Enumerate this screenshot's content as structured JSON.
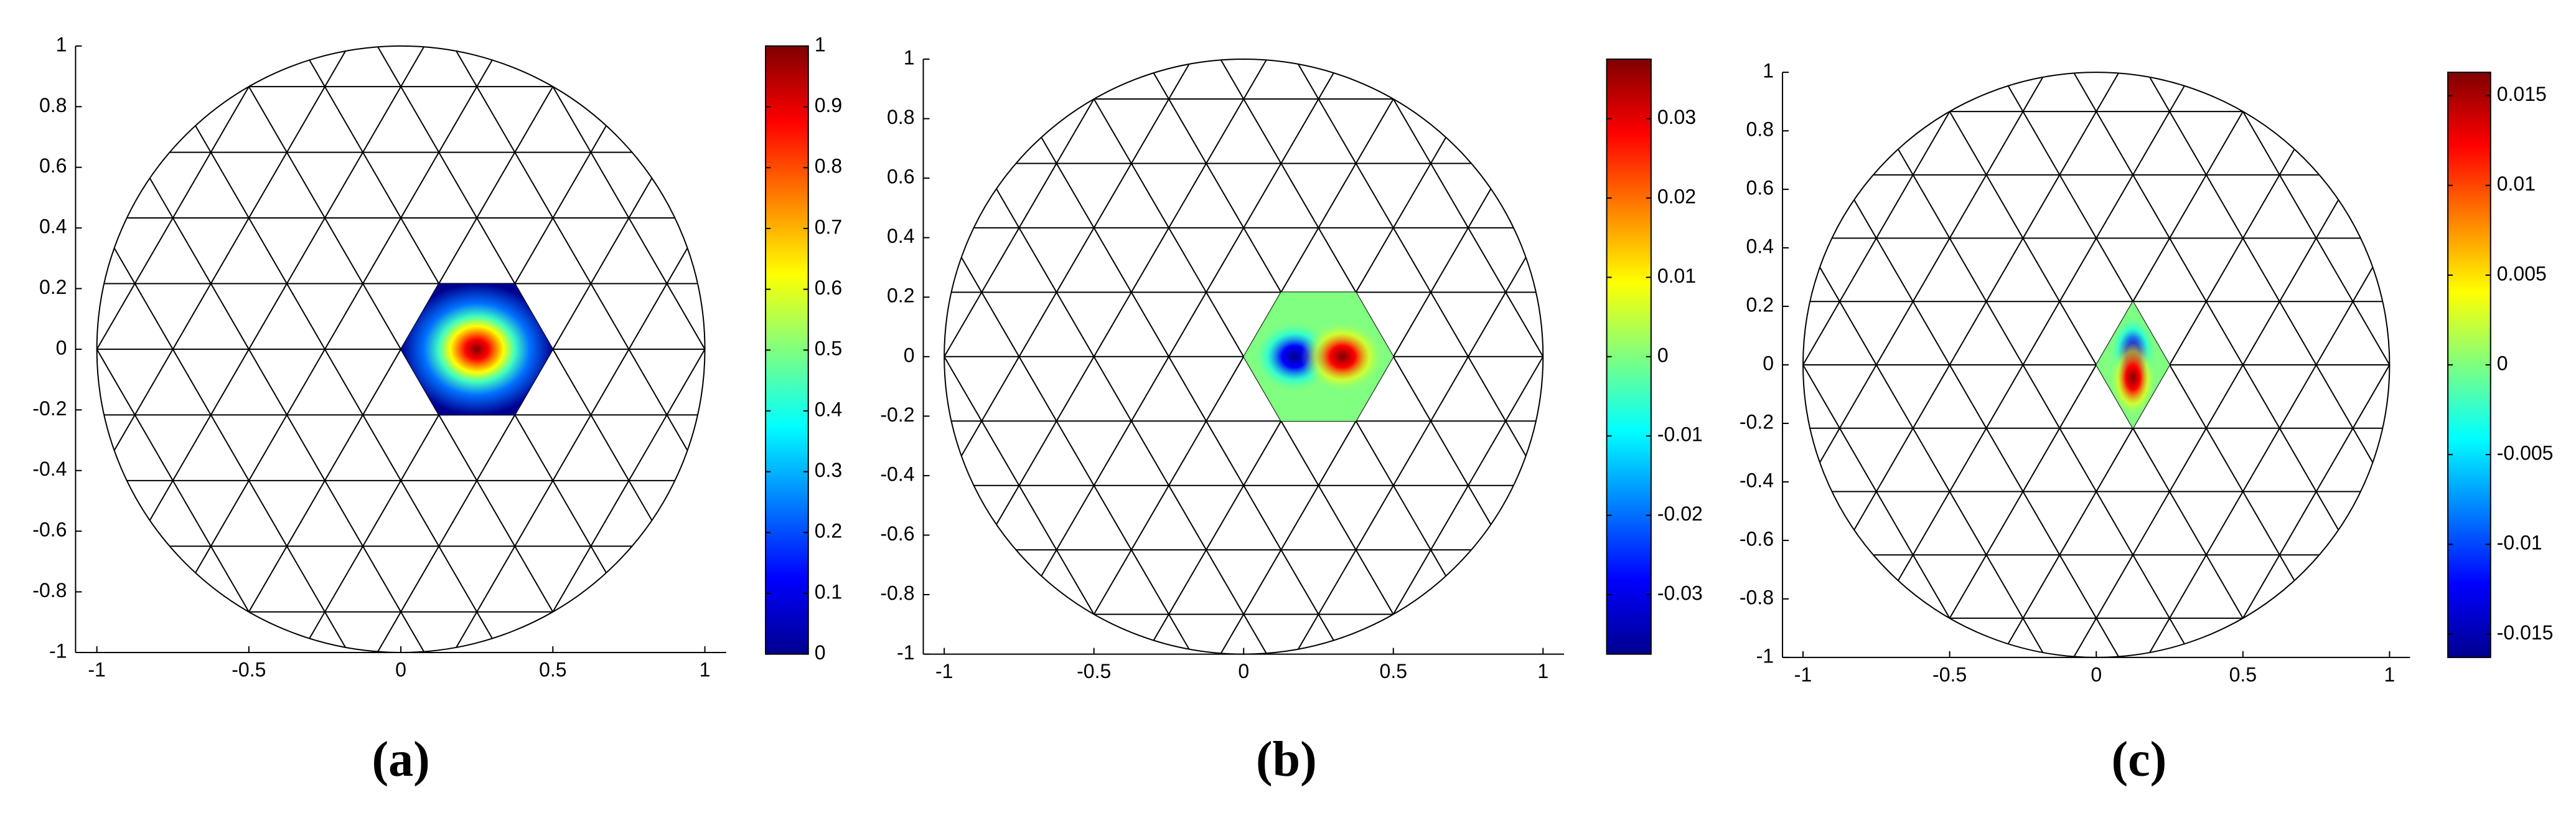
{
  "chart_data": [
    {
      "type": "mesh",
      "label": "(a)",
      "xlim": [
        -1.07,
        1.07
      ],
      "ylim": [
        -1,
        1
      ],
      "xticks": [
        -1,
        -0.5,
        0,
        0.5,
        1
      ],
      "yticks": [
        -1,
        -0.8,
        -0.6,
        -0.4,
        -0.2,
        0,
        0.2,
        0.4,
        0.6,
        0.8,
        1
      ],
      "colorbar": {
        "clim": [
          0,
          1
        ],
        "ticks": [
          0,
          0.1,
          0.2,
          0.3,
          0.4,
          0.5,
          0.6,
          0.7,
          0.8,
          0.9,
          1
        ]
      }
    },
    {
      "type": "mesh",
      "label": "(b)",
      "xlim": [
        -1.07,
        1.07
      ],
      "ylim": [
        -1,
        1
      ],
      "xticks": [
        -1,
        -0.5,
        0,
        0.5,
        1
      ],
      "yticks": [
        -1,
        -0.8,
        -0.6,
        -0.4,
        -0.2,
        0,
        0.2,
        0.4,
        0.6,
        0.8,
        1
      ],
      "colorbar": {
        "clim": [
          -0.0375,
          0.0375
        ],
        "ticks": [
          -0.03,
          -0.02,
          -0.01,
          0,
          0.01,
          0.02,
          0.03
        ]
      }
    },
    {
      "type": "mesh",
      "label": "(c)",
      "xlim": [
        -1.07,
        1.07
      ],
      "ylim": [
        -1,
        1
      ],
      "xticks": [
        -1,
        -0.5,
        0,
        0.5,
        1
      ],
      "yticks": [
        -1,
        -0.8,
        -0.6,
        -0.4,
        -0.2,
        0,
        0.2,
        0.4,
        0.6,
        0.8,
        1
      ],
      "colorbar": {
        "clim": [
          -0.0163,
          0.0163
        ],
        "ticks": [
          -0.015,
          -0.01,
          -0.005,
          0,
          0.005,
          0.01,
          0.015
        ]
      }
    }
  ]
}
